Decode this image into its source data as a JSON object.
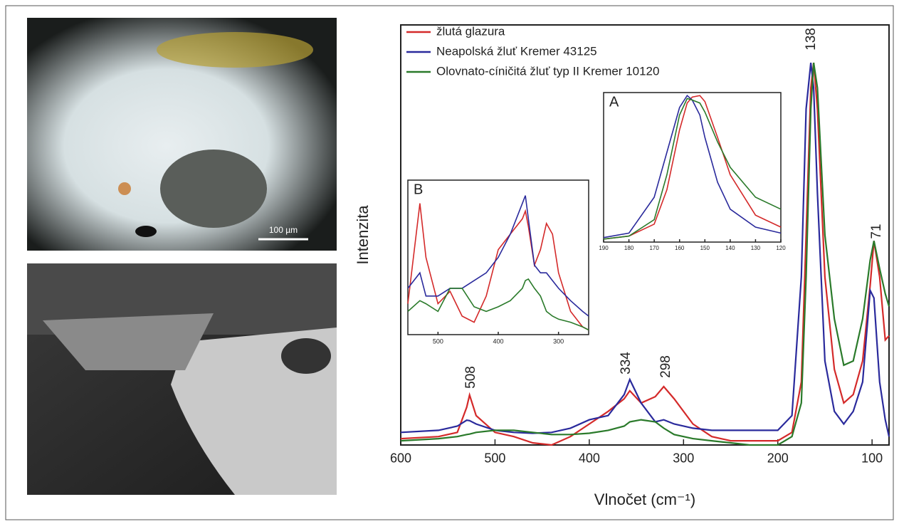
{
  "chart_data": [
    {
      "type": "line",
      "x_label": "Vlnočet (cm⁻¹)",
      "y_label": "Intenzita",
      "xlim": [
        600,
        82
      ],
      "xticks": [
        600,
        500,
        400,
        300,
        200,
        100
      ],
      "ylim": [
        0,
        100
      ],
      "legend": "upper left",
      "annotations": [
        "508",
        "334",
        "298",
        "138",
        "71"
      ],
      "x": [
        600,
        560,
        540,
        530,
        527,
        520,
        500,
        480,
        460,
        440,
        420,
        400,
        380,
        363,
        357,
        345,
        330,
        321,
        310,
        290,
        270,
        250,
        230,
        200,
        185,
        175,
        170,
        165,
        162,
        158,
        150,
        140,
        130,
        120,
        110,
        102,
        98,
        92,
        86,
        82
      ],
      "series": [
        {
          "name": "žlutá glazura",
          "color": "#d42a2a",
          "values": [
            1.5,
            2,
            3,
            9,
            11.9,
            7,
            3,
            2,
            0.5,
            0,
            2,
            5,
            8,
            11,
            12.9,
            10,
            11.5,
            13.9,
            11,
            5,
            2,
            1,
            1,
            1,
            3,
            15,
            50,
            85,
            91,
            80,
            40,
            18,
            10,
            12,
            20,
            38,
            48.6,
            40,
            25,
            26
          ]
        },
        {
          "name": "Neapolská žluť Kremer 43125",
          "color": "#2a2a9c",
          "values": [
            3,
            3.5,
            4.5,
            5.9,
            5.8,
            5,
            3.5,
            3,
            2.8,
            3,
            4,
            6,
            7,
            12,
            15.6,
            10,
            5.5,
            6,
            5,
            4,
            3.5,
            3.5,
            3.5,
            3.5,
            7,
            40,
            80,
            91,
            85,
            60,
            20,
            8,
            5,
            8,
            15,
            36.8,
            35,
            15,
            6,
            2
          ]
        },
        {
          "name": "Olovnato-cíničitá žluť typ II Kremer 10120",
          "color": "#2a7a2a",
          "values": [
            1,
            1.5,
            2,
            2.5,
            2.6,
            3,
            3.5,
            3.5,
            3,
            2.5,
            2.5,
            2.8,
            3.5,
            4.5,
            5.5,
            6,
            5.5,
            4,
            2.5,
            1.5,
            1,
            0.5,
            0,
            0,
            2,
            10,
            40,
            80,
            91,
            85,
            50,
            30,
            19,
            20,
            30,
            44,
            48.6,
            42,
            36,
            33
          ]
        }
      ]
    },
    {
      "type": "line",
      "label": "A",
      "xlim": [
        190,
        120
      ],
      "xticks": [
        190,
        180,
        170,
        160,
        150,
        140,
        130,
        120
      ],
      "ylim": [
        0,
        100
      ],
      "x": [
        190,
        180,
        170,
        165,
        160,
        157,
        155,
        152,
        150,
        145,
        140,
        130,
        120
      ],
      "series": [
        {
          "color": "#d42a2a",
          "values": [
            2,
            4,
            12,
            35,
            75,
            93,
            97,
            98,
            94,
            70,
            45,
            18,
            10
          ]
        },
        {
          "color": "#2a2a9c",
          "values": [
            3,
            6,
            30,
            60,
            90,
            98,
            95,
            85,
            70,
            40,
            22,
            10,
            6
          ]
        },
        {
          "color": "#2a7a2a",
          "values": [
            2,
            4,
            15,
            45,
            85,
            96,
            95,
            93,
            87,
            67,
            50,
            30,
            22
          ]
        }
      ]
    },
    {
      "type": "line",
      "label": "B",
      "xlim": [
        550,
        250
      ],
      "xticks": [
        500,
        400,
        300
      ],
      "ylim": [
        0,
        100
      ],
      "x": [
        550,
        530,
        520,
        500,
        480,
        460,
        440,
        420,
        400,
        380,
        360,
        355,
        350,
        340,
        330,
        320,
        310,
        300,
        280,
        260,
        250
      ],
      "series": [
        {
          "color": "#d42a2a",
          "values": [
            20,
            85,
            50,
            20,
            28,
            12,
            8,
            25,
            55,
            65,
            75,
            80,
            70,
            45,
            55,
            72,
            65,
            40,
            15,
            5,
            3
          ]
        },
        {
          "color": "#2a2a9c",
          "values": [
            30,
            40,
            25,
            25,
            30,
            30,
            35,
            40,
            50,
            65,
            85,
            90,
            75,
            45,
            40,
            40,
            35,
            30,
            22,
            15,
            12
          ]
        },
        {
          "color": "#2a7a2a",
          "values": [
            15,
            22,
            20,
            15,
            30,
            30,
            18,
            15,
            18,
            22,
            30,
            35,
            36,
            30,
            25,
            15,
            12,
            10,
            8,
            5,
            3
          ]
        }
      ]
    }
  ],
  "photos": {
    "scale_bar": "100 µm"
  }
}
